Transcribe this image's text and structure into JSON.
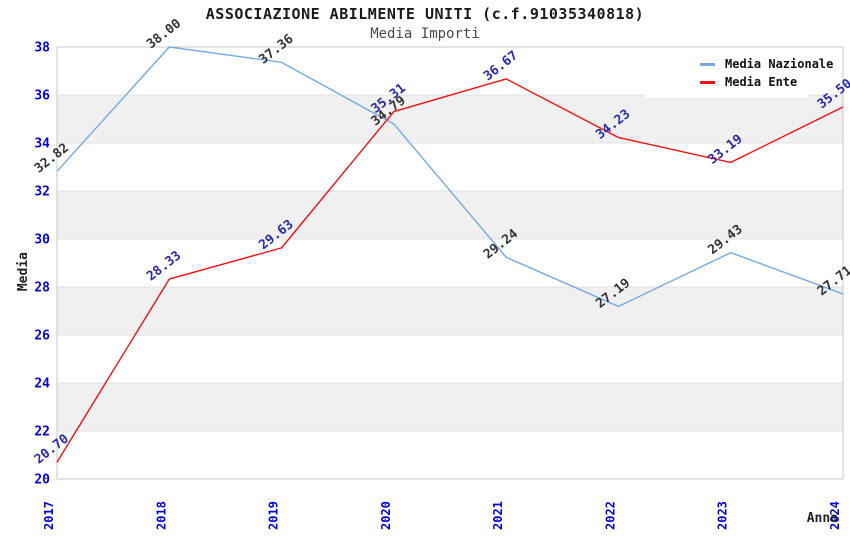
{
  "chart_data": {
    "type": "line",
    "title": "ASSOCIAZIONE ABILMENTE UNITI (c.f.91035340818)",
    "subtitle": "Media Importi",
    "xlabel": "Anno",
    "ylabel": "Media",
    "categories": [
      "2017",
      "2018",
      "2019",
      "2020",
      "2021",
      "2022",
      "2023",
      "2024"
    ],
    "series": [
      {
        "name": "Media Nazionale",
        "color": "#74abe2",
        "label_color": "#333333",
        "values": [
          32.82,
          38.0,
          37.36,
          34.79,
          29.24,
          27.19,
          29.43,
          27.71
        ]
      },
      {
        "name": "Media Ente",
        "color": "#ee1111",
        "label_color": "#2929ad",
        "values": [
          20.7,
          28.33,
          29.63,
          35.31,
          36.67,
          34.23,
          33.19,
          35.5
        ]
      }
    ],
    "ylim": [
      20,
      38
    ],
    "ytick_step": 2,
    "yticks": [
      20,
      22,
      24,
      26,
      28,
      30,
      32,
      34,
      36,
      38
    ],
    "grid": true,
    "band_color": "#f0f0f0",
    "gridline_color": "#e0e0e0",
    "border_color": "#c8c8c8",
    "tick_label_color": "#0000dd",
    "background_color": "#ffffff",
    "legend_position": "top-right",
    "value_decimals": 2
  }
}
